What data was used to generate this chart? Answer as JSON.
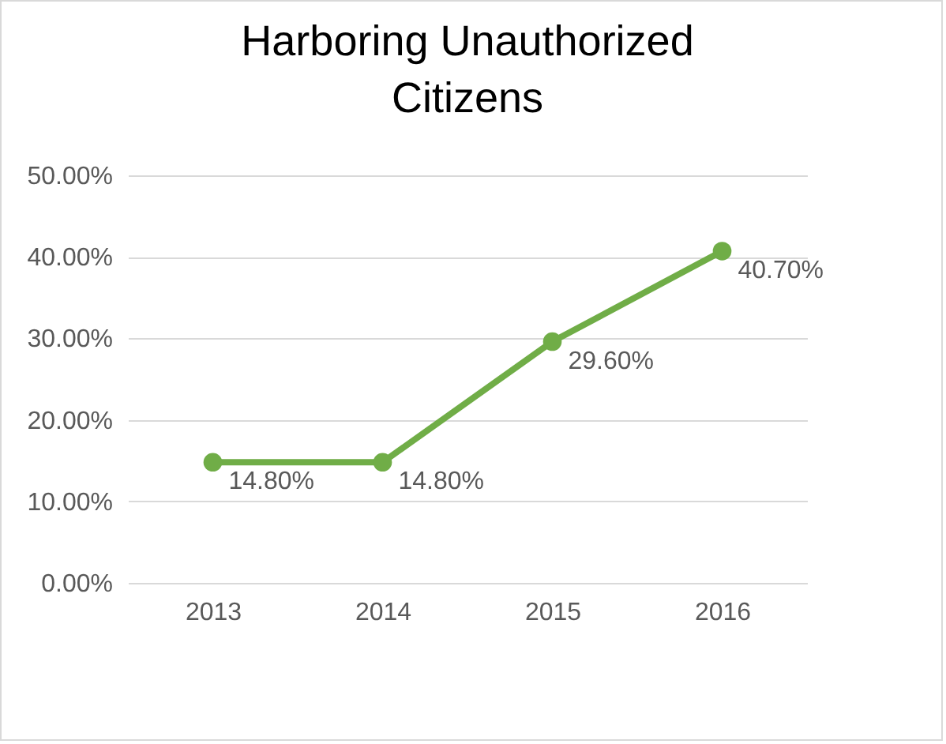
{
  "chart_data": {
    "type": "line",
    "title": "Harboring Unauthorized Citizens",
    "categories": [
      "2013",
      "2014",
      "2015",
      "2016"
    ],
    "series": [
      {
        "color": "#70ad47",
        "values": [
          14.8,
          14.8,
          29.6,
          40.7
        ],
        "value_labels": [
          "14.80%",
          "14.80%",
          "29.60%",
          "40.70%"
        ]
      }
    ],
    "ylim": [
      0,
      50
    ],
    "yticks": [
      {
        "value": 0,
        "label": "0.00%"
      },
      {
        "value": 10,
        "label": "10.00%"
      },
      {
        "value": 20,
        "label": "20.00%"
      },
      {
        "value": 30,
        "label": "30.00%"
      },
      {
        "value": 40,
        "label": "40.00%"
      },
      {
        "value": 50,
        "label": "50.00%"
      }
    ],
    "grid": "y",
    "marker": "circle",
    "line_style": "solid"
  }
}
